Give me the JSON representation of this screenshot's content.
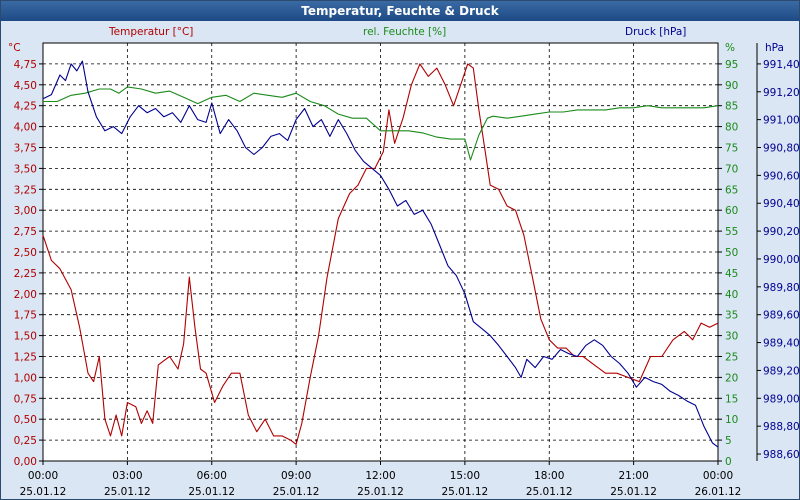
{
  "window": {
    "title": "Temperatur, Feuchte & Druck"
  },
  "chart_data": {
    "type": "line",
    "title": "Temperatur, Feuchte & Druck",
    "x": {
      "range": [
        0,
        24
      ],
      "tick_times": [
        "00:00",
        "03:00",
        "06:00",
        "09:00",
        "12:00",
        "15:00",
        "18:00",
        "21:00",
        "00:00"
      ],
      "tick_dates": [
        "25.01.12",
        "25.01.12",
        "25.01.12",
        "25.01.12",
        "25.01.12",
        "25.01.12",
        "25.01.12",
        "25.01.12",
        "26.01.12"
      ]
    },
    "axes": {
      "temperature": {
        "label": "Temperatur [°C]",
        "unit": "°C",
        "range": [
          0,
          5
        ],
        "color": "#b00000",
        "ticks": [
          "0,00",
          "0,25",
          "0,50",
          "0,75",
          "1,00",
          "1,25",
          "1,50",
          "1,75",
          "2,00",
          "2,25",
          "2,50",
          "2,75",
          "3,00",
          "3,25",
          "3,50",
          "3,75",
          "4,00",
          "4,25",
          "4,50",
          "4,75"
        ]
      },
      "humidity": {
        "label": "rel. Feuchte [%]",
        "unit": "%",
        "range": [
          0,
          100
        ],
        "color": "#1a8a1a",
        "ticks": [
          "0",
          "5",
          "10",
          "15",
          "20",
          "25",
          "30",
          "35",
          "40",
          "45",
          "50",
          "55",
          "60",
          "65",
          "70",
          "75",
          "80",
          "85",
          "90",
          "95"
        ]
      },
      "pressure": {
        "label": "Druck [hPa]",
        "unit": "hPa",
        "range": [
          988.55,
          991.55
        ],
        "color": "#000090",
        "ticks": [
          "988,60",
          "988,80",
          "989,00",
          "989,20",
          "989,40",
          "989,60",
          "989,80",
          "990,00",
          "990,20",
          "990,40",
          "990,60",
          "990,80",
          "991,00",
          "991,20",
          "991,40"
        ],
        "tick_values": [
          988.6,
          988.8,
          989.0,
          989.2,
          989.4,
          989.6,
          989.8,
          990.0,
          990.2,
          990.4,
          990.6,
          990.8,
          991.0,
          991.2,
          991.4
        ]
      }
    },
    "series": [
      {
        "name": "Temperatur",
        "axis": "temperature",
        "color": "#b00000",
        "points": [
          [
            0,
            2.7
          ],
          [
            0.3,
            2.4
          ],
          [
            0.6,
            2.3
          ],
          [
            1.0,
            2.05
          ],
          [
            1.3,
            1.6
          ],
          [
            1.6,
            1.05
          ],
          [
            1.8,
            0.95
          ],
          [
            2.0,
            1.25
          ],
          [
            2.2,
            0.5
          ],
          [
            2.4,
            0.3
          ],
          [
            2.6,
            0.55
          ],
          [
            2.8,
            0.3
          ],
          [
            3.0,
            0.7
          ],
          [
            3.3,
            0.65
          ],
          [
            3.5,
            0.45
          ],
          [
            3.7,
            0.6
          ],
          [
            3.9,
            0.45
          ],
          [
            4.1,
            1.15
          ],
          [
            4.3,
            1.2
          ],
          [
            4.5,
            1.25
          ],
          [
            4.8,
            1.1
          ],
          [
            5.0,
            1.4
          ],
          [
            5.2,
            2.2
          ],
          [
            5.4,
            1.6
          ],
          [
            5.6,
            1.1
          ],
          [
            5.8,
            1.05
          ],
          [
            6.1,
            0.7
          ],
          [
            6.4,
            0.9
          ],
          [
            6.7,
            1.05
          ],
          [
            7.0,
            1.05
          ],
          [
            7.3,
            0.55
          ],
          [
            7.6,
            0.35
          ],
          [
            7.9,
            0.5
          ],
          [
            8.2,
            0.3
          ],
          [
            8.5,
            0.3
          ],
          [
            8.8,
            0.25
          ],
          [
            9.0,
            0.2
          ],
          [
            9.2,
            0.45
          ],
          [
            9.5,
            1.0
          ],
          [
            9.8,
            1.5
          ],
          [
            10.1,
            2.2
          ],
          [
            10.5,
            2.9
          ],
          [
            10.9,
            3.2
          ],
          [
            11.2,
            3.3
          ],
          [
            11.5,
            3.5
          ],
          [
            11.8,
            3.5
          ],
          [
            12.1,
            3.7
          ],
          [
            12.3,
            4.2
          ],
          [
            12.5,
            3.8
          ],
          [
            12.8,
            4.1
          ],
          [
            13.1,
            4.5
          ],
          [
            13.4,
            4.75
          ],
          [
            13.7,
            4.6
          ],
          [
            14.0,
            4.7
          ],
          [
            14.3,
            4.5
          ],
          [
            14.6,
            4.25
          ],
          [
            14.9,
            4.55
          ],
          [
            15.1,
            4.75
          ],
          [
            15.3,
            4.7
          ],
          [
            15.5,
            4.2
          ],
          [
            15.7,
            3.75
          ],
          [
            15.9,
            3.3
          ],
          [
            16.2,
            3.25
          ],
          [
            16.5,
            3.05
          ],
          [
            16.8,
            3.0
          ],
          [
            17.1,
            2.7
          ],
          [
            17.4,
            2.2
          ],
          [
            17.7,
            1.7
          ],
          [
            18.0,
            1.45
          ],
          [
            18.3,
            1.35
          ],
          [
            18.6,
            1.35
          ],
          [
            18.9,
            1.25
          ],
          [
            19.2,
            1.25
          ],
          [
            19.6,
            1.15
          ],
          [
            20.0,
            1.05
          ],
          [
            20.4,
            1.05
          ],
          [
            20.8,
            1.0
          ],
          [
            21.2,
            0.95
          ],
          [
            21.6,
            1.25
          ],
          [
            22.0,
            1.25
          ],
          [
            22.4,
            1.45
          ],
          [
            22.8,
            1.55
          ],
          [
            23.1,
            1.45
          ],
          [
            23.4,
            1.65
          ],
          [
            23.7,
            1.6
          ],
          [
            24.0,
            1.65
          ]
        ]
      },
      {
        "name": "rel. Feuchte",
        "axis": "humidity",
        "color": "#1a8a1a",
        "points": [
          [
            0,
            86
          ],
          [
            0.5,
            86
          ],
          [
            1.0,
            87.5
          ],
          [
            1.5,
            88
          ],
          [
            2.0,
            89
          ],
          [
            2.4,
            89
          ],
          [
            2.7,
            88
          ],
          [
            3.0,
            89.5
          ],
          [
            3.5,
            89
          ],
          [
            4.0,
            88
          ],
          [
            4.5,
            88.5
          ],
          [
            5.0,
            87
          ],
          [
            5.5,
            85.5
          ],
          [
            6.0,
            87
          ],
          [
            6.5,
            87.5
          ],
          [
            7.0,
            86
          ],
          [
            7.5,
            88
          ],
          [
            8.0,
            87.5
          ],
          [
            8.5,
            87
          ],
          [
            9.0,
            88
          ],
          [
            9.5,
            86
          ],
          [
            10.0,
            85
          ],
          [
            10.5,
            83
          ],
          [
            11.0,
            82
          ],
          [
            11.5,
            82
          ],
          [
            12.0,
            79
          ],
          [
            12.5,
            79
          ],
          [
            13.0,
            79
          ],
          [
            13.5,
            78.5
          ],
          [
            14.0,
            77.5
          ],
          [
            14.5,
            77
          ],
          [
            15.0,
            77
          ],
          [
            15.2,
            72
          ],
          [
            15.5,
            78
          ],
          [
            15.8,
            82
          ],
          [
            16.0,
            82.5
          ],
          [
            16.5,
            82
          ],
          [
            17.0,
            82.5
          ],
          [
            17.5,
            83
          ],
          [
            18.0,
            83.5
          ],
          [
            18.5,
            83.5
          ],
          [
            19.0,
            84
          ],
          [
            19.5,
            84
          ],
          [
            20.0,
            84
          ],
          [
            20.5,
            84.5
          ],
          [
            21.0,
            84.5
          ],
          [
            21.5,
            85
          ],
          [
            22.0,
            84.5
          ],
          [
            22.5,
            84.5
          ],
          [
            23.0,
            84.5
          ],
          [
            23.5,
            84.5
          ],
          [
            24.0,
            85
          ]
        ]
      },
      {
        "name": "Druck",
        "axis": "pressure",
        "color": "#000090",
        "points": [
          [
            0,
            991.15
          ],
          [
            0.3,
            991.18
          ],
          [
            0.6,
            991.32
          ],
          [
            0.8,
            991.28
          ],
          [
            1.0,
            991.4
          ],
          [
            1.2,
            991.35
          ],
          [
            1.4,
            991.42
          ],
          [
            1.6,
            991.2
          ],
          [
            1.9,
            991.02
          ],
          [
            2.2,
            990.92
          ],
          [
            2.5,
            990.95
          ],
          [
            2.8,
            990.9
          ],
          [
            3.1,
            991.02
          ],
          [
            3.4,
            991.1
          ],
          [
            3.7,
            991.05
          ],
          [
            4.0,
            991.08
          ],
          [
            4.3,
            991.02
          ],
          [
            4.6,
            991.05
          ],
          [
            4.9,
            990.98
          ],
          [
            5.2,
            991.1
          ],
          [
            5.5,
            991.0
          ],
          [
            5.8,
            990.98
          ],
          [
            6.0,
            991.12
          ],
          [
            6.3,
            990.9
          ],
          [
            6.6,
            991.0
          ],
          [
            6.9,
            990.92
          ],
          [
            7.2,
            990.8
          ],
          [
            7.5,
            990.75
          ],
          [
            7.8,
            990.8
          ],
          [
            8.1,
            990.88
          ],
          [
            8.4,
            990.9
          ],
          [
            8.7,
            990.85
          ],
          [
            9.0,
            991.0
          ],
          [
            9.3,
            991.08
          ],
          [
            9.6,
            990.95
          ],
          [
            9.9,
            991.0
          ],
          [
            10.2,
            990.88
          ],
          [
            10.5,
            991.0
          ],
          [
            10.8,
            990.9
          ],
          [
            11.1,
            990.78
          ],
          [
            11.4,
            990.7
          ],
          [
            11.7,
            990.65
          ],
          [
            12.0,
            990.6
          ],
          [
            12.3,
            990.5
          ],
          [
            12.6,
            990.38
          ],
          [
            12.9,
            990.42
          ],
          [
            13.2,
            990.32
          ],
          [
            13.5,
            990.35
          ],
          [
            13.8,
            990.25
          ],
          [
            14.1,
            990.1
          ],
          [
            14.4,
            989.95
          ],
          [
            14.7,
            989.88
          ],
          [
            15.0,
            989.75
          ],
          [
            15.3,
            989.55
          ],
          [
            15.6,
            989.5
          ],
          [
            15.9,
            989.45
          ],
          [
            16.2,
            989.38
          ],
          [
            16.5,
            989.3
          ],
          [
            16.8,
            989.22
          ],
          [
            17.0,
            989.15
          ],
          [
            17.2,
            989.28
          ],
          [
            17.5,
            989.22
          ],
          [
            17.8,
            989.3
          ],
          [
            18.1,
            989.28
          ],
          [
            18.4,
            989.35
          ],
          [
            18.7,
            989.32
          ],
          [
            19.0,
            989.3
          ],
          [
            19.3,
            989.38
          ],
          [
            19.6,
            989.42
          ],
          [
            19.9,
            989.38
          ],
          [
            20.2,
            989.3
          ],
          [
            20.5,
            989.25
          ],
          [
            20.8,
            989.18
          ],
          [
            21.1,
            989.08
          ],
          [
            21.4,
            989.15
          ],
          [
            21.7,
            989.12
          ],
          [
            22.0,
            989.1
          ],
          [
            22.3,
            989.05
          ],
          [
            22.6,
            989.02
          ],
          [
            22.9,
            988.98
          ],
          [
            23.2,
            988.95
          ],
          [
            23.5,
            988.8
          ],
          [
            23.8,
            988.68
          ],
          [
            24.0,
            988.65
          ]
        ]
      }
    ],
    "grid": true
  }
}
